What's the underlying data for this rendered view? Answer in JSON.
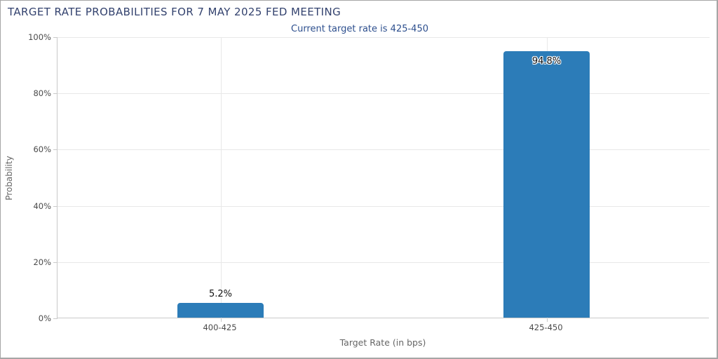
{
  "chart_data": {
    "type": "bar",
    "title": "TARGET RATE PROBABILITIES FOR 7 MAY 2025 FED MEETING",
    "subtitle": "Current target rate is 425-450",
    "xlabel": "Target Rate (in bps)",
    "ylabel": "Probability",
    "categories": [
      "400-425",
      "425-450"
    ],
    "values": [
      5.2,
      94.8
    ],
    "data_labels": [
      "5.2%",
      "94.8%"
    ],
    "ylim": [
      0,
      100
    ],
    "yticks": [
      0,
      20,
      40,
      60,
      80,
      100
    ],
    "ytick_labels": [
      "0%",
      "20%",
      "40%",
      "60%",
      "80%",
      "100%"
    ],
    "grid": true,
    "legend": false
  },
  "colors": {
    "title": "#33426e",
    "subtitle": "#2d4f8e",
    "bar": "#2c7cb8",
    "grid": "#e8e8e8",
    "axis": "#c9c9c9",
    "tick_text": "#4a4a4a",
    "axis_title_text": "#666666",
    "bar_label_text": "#111111",
    "frame_border": "#a6a6a6"
  }
}
